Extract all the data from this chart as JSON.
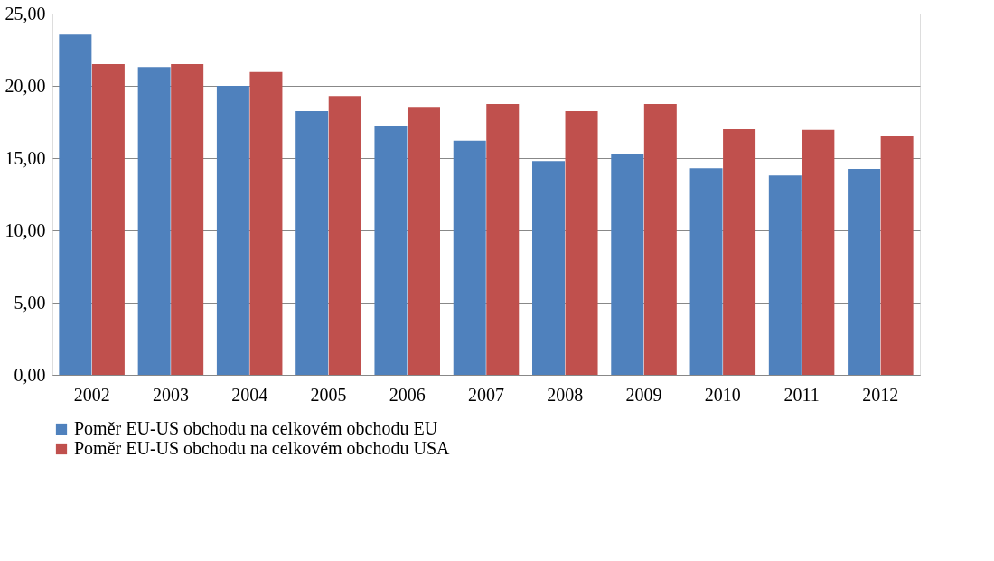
{
  "chart_data": {
    "type": "bar",
    "categories": [
      "2002",
      "2003",
      "2004",
      "2005",
      "2006",
      "2007",
      "2008",
      "2009",
      "2010",
      "2011",
      "2012"
    ],
    "series": [
      {
        "name": "Poměr EU-US obchodu na celkovém obchodu EU",
        "color": "#4f81bd",
        "values": [
          23.55,
          21.3,
          20.0,
          18.25,
          17.25,
          16.2,
          14.8,
          15.3,
          14.3,
          13.8,
          14.25
        ]
      },
      {
        "name": "Poměr EU-US obchodu na celkovém obchodu USA",
        "color": "#c0504d",
        "values": [
          21.5,
          21.5,
          20.95,
          19.3,
          18.55,
          18.75,
          18.25,
          18.75,
          17.0,
          16.95,
          16.5
        ]
      }
    ],
    "ylim": [
      0,
      25
    ],
    "yticks": [
      {
        "value": 0,
        "label": "0,00"
      },
      {
        "value": 5,
        "label": "5,00"
      },
      {
        "value": 10,
        "label": "10,00"
      },
      {
        "value": 15,
        "label": "15,00"
      },
      {
        "value": 20,
        "label": "20,00"
      },
      {
        "value": 25,
        "label": "25,00"
      }
    ],
    "grid": "y",
    "legend": "bottom"
  }
}
